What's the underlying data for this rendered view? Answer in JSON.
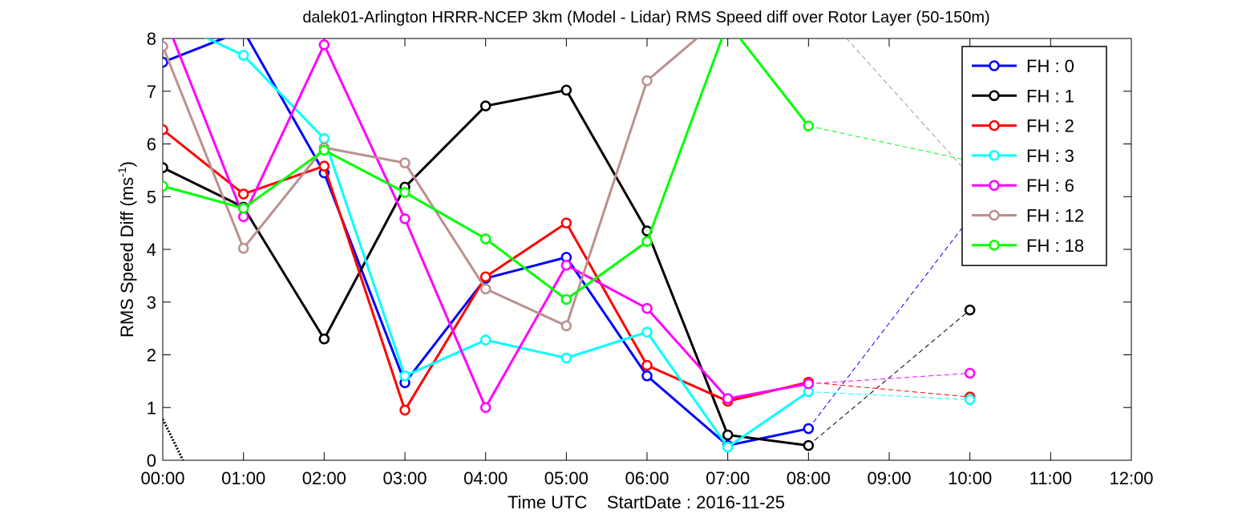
{
  "chart_data": {
    "type": "line",
    "title": "dalek01-Arlington HRRR-NCEP 3km (Model - Lidar) RMS Speed diff over Rotor Layer (50-150m)",
    "xlabel": "Time UTC    StartDate : 2016-11-25",
    "ylabel_main": "RMS Speed Diff (ms",
    "ylabel_sup": "-1",
    "ylabel_close": ")",
    "xlim": [
      0,
      12
    ],
    "ylim": [
      0,
      8
    ],
    "x_ticks": [
      0,
      1,
      2,
      3,
      4,
      5,
      6,
      7,
      8,
      9,
      10,
      11,
      12
    ],
    "x_tick_labels": [
      "00:00",
      "01:00",
      "02:00",
      "03:00",
      "04:00",
      "05:00",
      "06:00",
      "07:00",
      "08:00",
      "09:00",
      "10:00",
      "11:00",
      "12:00"
    ],
    "y_ticks": [
      0,
      1,
      2,
      3,
      4,
      5,
      6,
      7,
      8
    ],
    "y_tick_labels": [
      "0",
      "1",
      "2",
      "3",
      "4",
      "5",
      "6",
      "7",
      "8"
    ],
    "grid": false,
    "legend_position": "top-right",
    "series": [
      {
        "name": "FH : 0",
        "color": "#0000ff",
        "x": [
          0,
          1,
          2,
          3,
          4,
          5,
          6,
          7,
          8
        ],
        "y": [
          7.55,
          8.15,
          5.45,
          1.47,
          3.45,
          3.85,
          1.6,
          0.28,
          0.6
        ],
        "extra_x": [
          10
        ],
        "extra_y": [
          4.6
        ]
      },
      {
        "name": "FH : 1",
        "color": "#000000",
        "x": [
          0,
          1,
          2,
          3,
          4,
          5,
          6,
          7,
          8
        ],
        "y": [
          5.55,
          4.8,
          2.3,
          5.18,
          6.72,
          7.02,
          4.35,
          0.48,
          0.28
        ],
        "extra_x": [
          10
        ],
        "extra_y": [
          2.85
        ]
      },
      {
        "name": "FH : 2",
        "color": "#ff0000",
        "x": [
          0,
          1,
          2,
          3,
          4,
          5,
          6,
          7,
          8
        ],
        "y": [
          6.27,
          5.05,
          5.58,
          0.95,
          3.48,
          4.5,
          1.8,
          1.12,
          1.48
        ],
        "extra_x": [
          10
        ],
        "extra_y": [
          1.2
        ]
      },
      {
        "name": "FH : 3",
        "color": "#00ffff",
        "x": [
          0,
          1,
          2,
          3,
          4,
          5,
          6,
          7,
          8
        ],
        "y": [
          8.4,
          7.68,
          6.1,
          1.6,
          2.28,
          1.94,
          2.43,
          0.25,
          1.3
        ],
        "extra_x": [
          10
        ],
        "extra_y": [
          1.15
        ]
      },
      {
        "name": "FH : 6",
        "color": "#ff00ff",
        "x": [
          0,
          1,
          2,
          3,
          4,
          5,
          6,
          7,
          8
        ],
        "y": [
          8.5,
          4.62,
          7.88,
          4.58,
          1.0,
          3.7,
          2.88,
          1.17,
          1.45
        ],
        "extra_x": [
          10
        ],
        "extra_y": [
          1.65
        ]
      },
      {
        "name": "FH : 12",
        "color": "#bc8f8f",
        "x": [
          0,
          1,
          2,
          3,
          4,
          5,
          6,
          7,
          8
        ],
        "y": [
          7.85,
          4.02,
          5.93,
          5.64,
          3.25,
          2.55,
          7.2,
          8.5,
          8.8
        ],
        "extra_x": [
          10
        ],
        "extra_y": [
          5.4
        ]
      },
      {
        "name": "FH : 18",
        "color": "#00ff00",
        "x": [
          0,
          1,
          2,
          3,
          4,
          5,
          6,
          7,
          8
        ],
        "y": [
          5.2,
          4.78,
          5.88,
          5.08,
          4.2,
          3.05,
          4.15,
          8.3,
          6.34
        ],
        "extra_x": [
          10
        ],
        "extra_y": [
          5.68
        ]
      }
    ],
    "reference_curve": {
      "color": "#000000",
      "x": [
        0,
        0.25
      ],
      "y": [
        0.78,
        0.0
      ]
    }
  }
}
